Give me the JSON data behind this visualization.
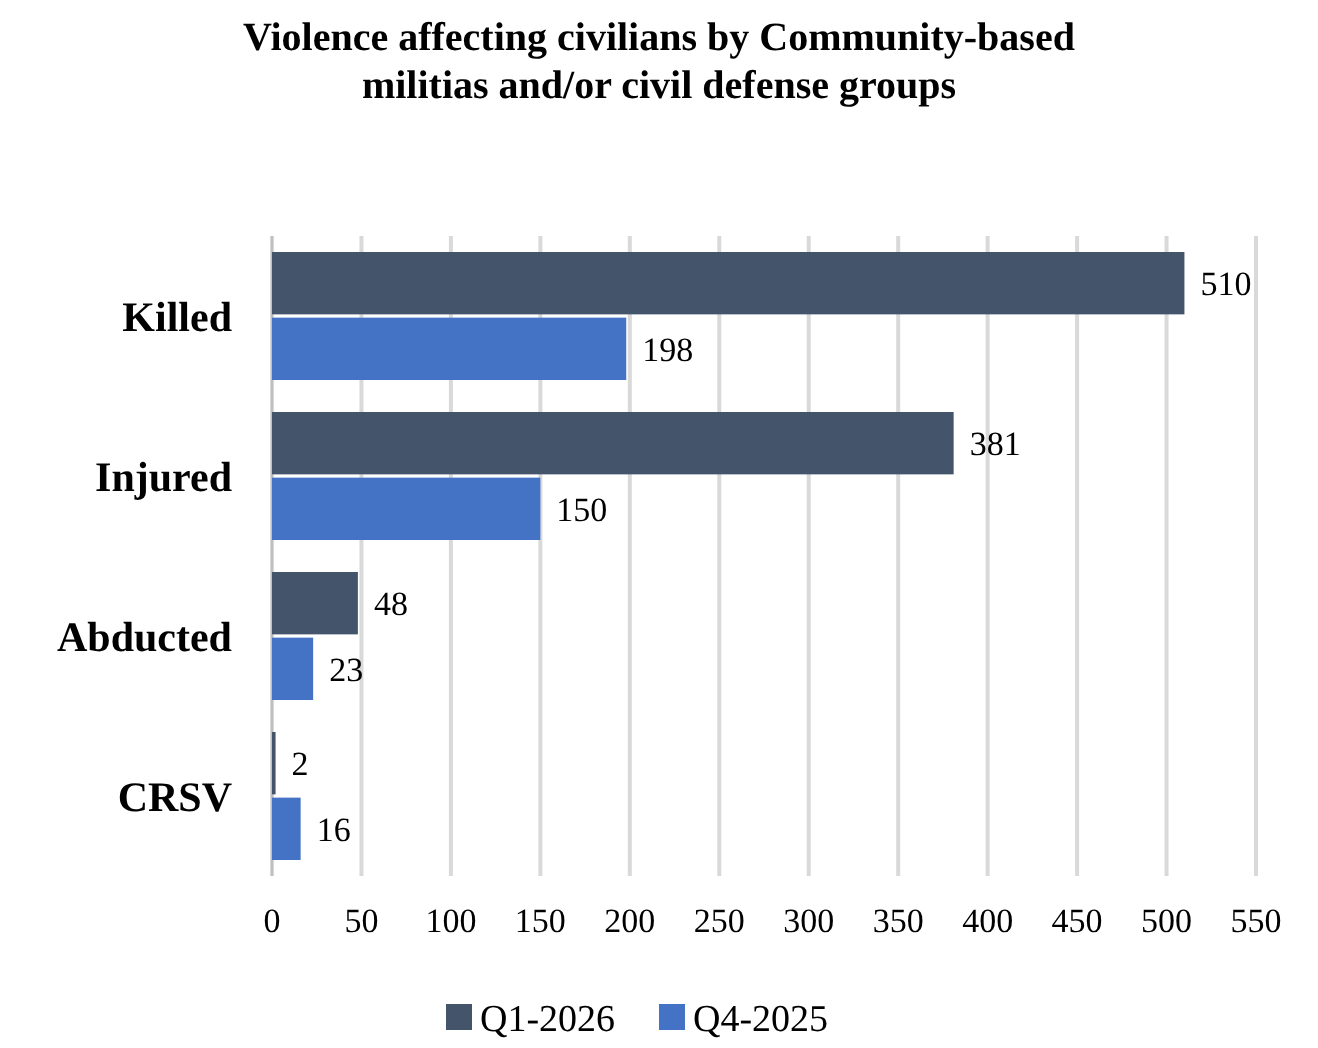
{
  "chart_data": {
    "type": "bar",
    "orientation": "horizontal",
    "title": "Violence affecting civilians by Community-based militias and/or civil defense groups",
    "categories": [
      "Killed",
      "Injured",
      "Abducted",
      "CRSV"
    ],
    "series": [
      {
        "name": "Q1-2026",
        "color": "#44546a",
        "values": [
          510,
          381,
          48,
          2
        ]
      },
      {
        "name": "Q4-2025",
        "color": "#4472c4",
        "values": [
          198,
          150,
          23,
          16
        ]
      }
    ],
    "xlim": [
      0,
      550
    ],
    "xticks": [
      0,
      50,
      100,
      150,
      200,
      250,
      300,
      350,
      400,
      450,
      500,
      550
    ],
    "grid": "x",
    "legend": "bottom",
    "data_labels": true
  }
}
